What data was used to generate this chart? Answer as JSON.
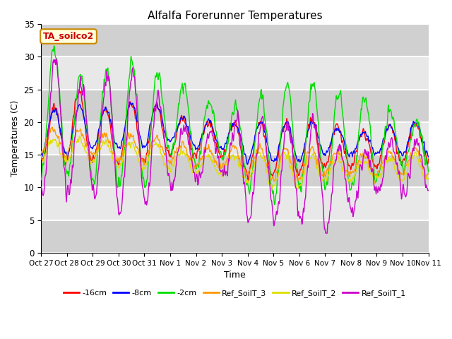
{
  "title": "Alfalfa Forerunner Temperatures",
  "xlabel": "Time",
  "ylabel": "Temperatures (C)",
  "annotation": "TA_soilco2",
  "annotation_color": "#cc0000",
  "annotation_box_color": "#ffffdd",
  "ylim": [
    0,
    35
  ],
  "yticks": [
    0,
    5,
    10,
    15,
    20,
    25,
    30,
    35
  ],
  "xtick_labels": [
    "Oct 27",
    "Oct 28",
    "Oct 29",
    "Oct 30",
    "Oct 31",
    "Nov 1",
    "Nov 2",
    "Nov 3",
    "Nov 4",
    "Nov 5",
    "Nov 6",
    "Nov 7",
    "Nov 8",
    "Nov 9",
    "Nov 10",
    "Nov 11"
  ],
  "legend_labels": [
    "-16cm",
    "-8cm",
    "-2cm",
    "Ref_SoilT_3",
    "Ref_SoilT_2",
    "Ref_SoilT_1"
  ],
  "legend_colors": [
    "#ff0000",
    "#0000ff",
    "#00dd00",
    "#ff9900",
    "#dddd00",
    "#cc00cc"
  ],
  "plot_bg_color": "#e8e8e8",
  "grid_color": "#ffffff",
  "days": 15
}
